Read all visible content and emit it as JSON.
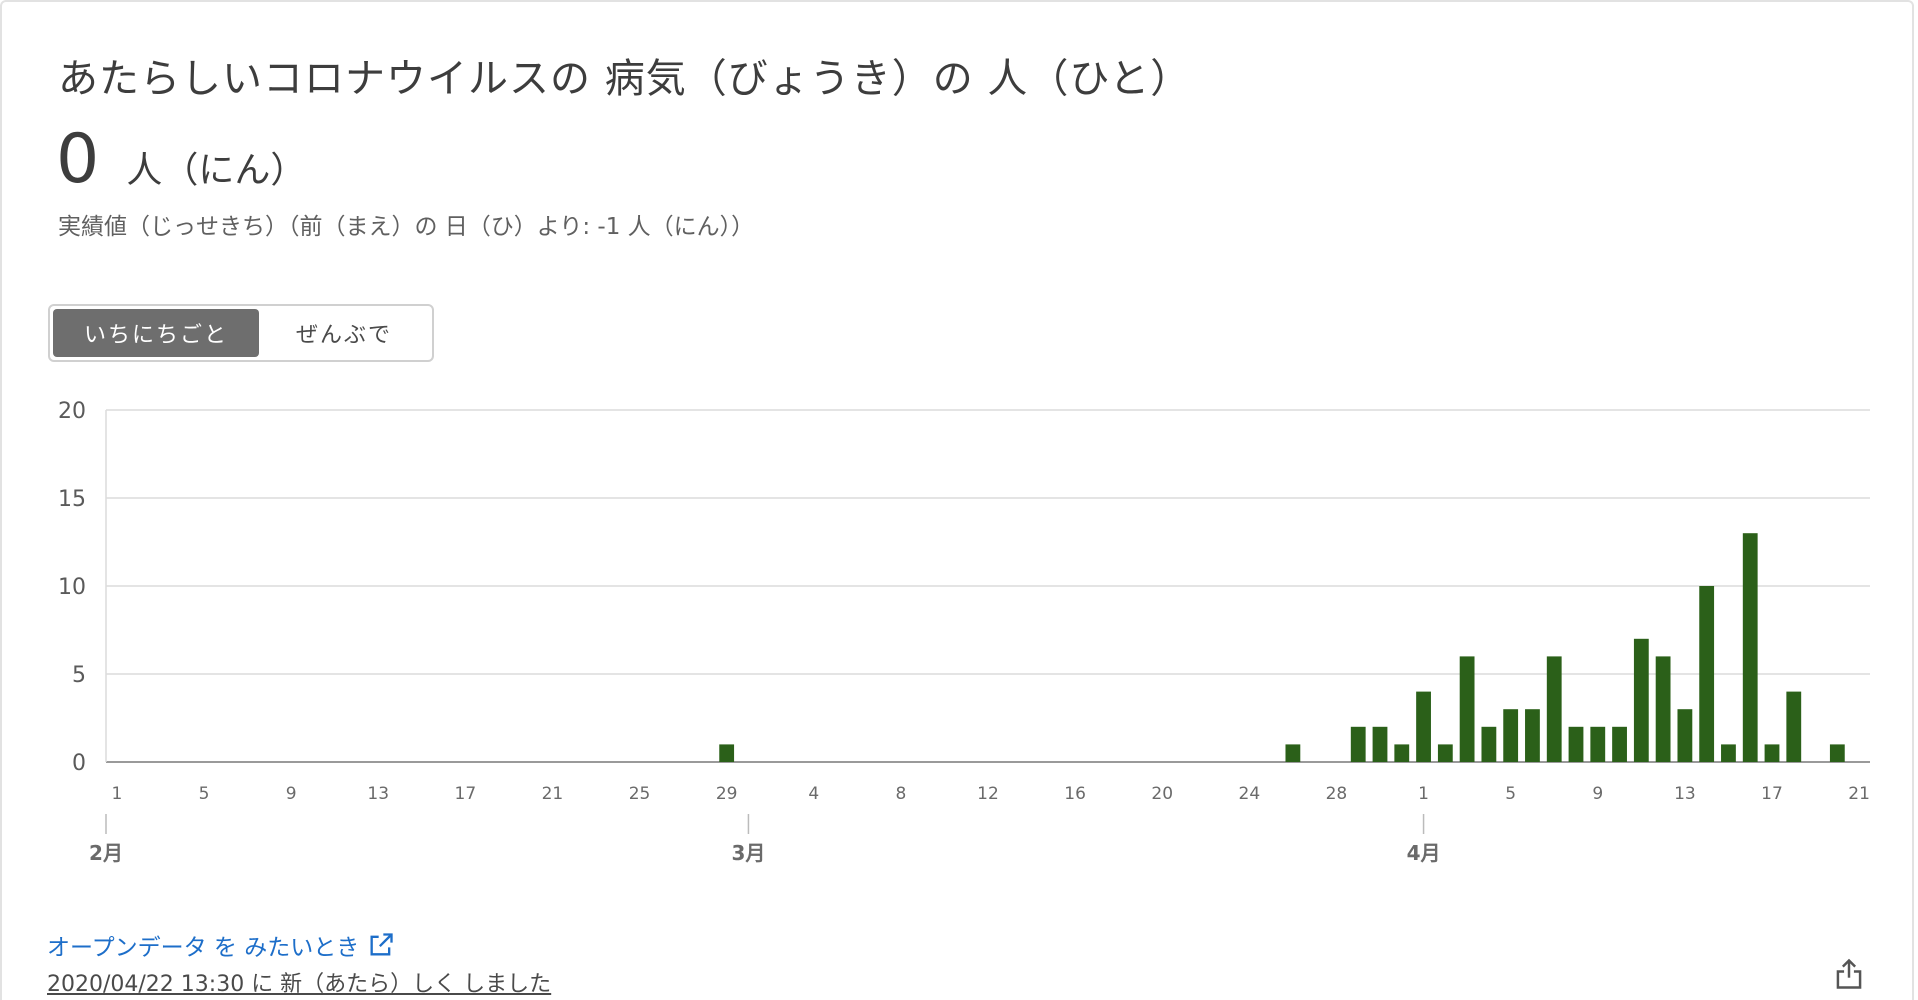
{
  "header": {
    "title": "あたらしいコロナウイルスの 病気（びょうき）の 人（ひと）",
    "value": "0",
    "unit": "人（にん）",
    "subtitle": "実績値（じっせきち）（前（まえ）の 日（ひ）より: -1 人（にん））"
  },
  "toggle": {
    "daily_label": "いちにちごと",
    "cumulative_label": "ぜんぶで",
    "selected": "daily"
  },
  "chart_data": {
    "type": "bar",
    "color": "#2b6019",
    "ylim": [
      0,
      20
    ],
    "yticks": [
      0,
      5,
      10,
      15,
      20
    ],
    "xticks": [
      {
        "label": "1",
        "index": 0
      },
      {
        "label": "5",
        "index": 4
      },
      {
        "label": "9",
        "index": 8
      },
      {
        "label": "13",
        "index": 12
      },
      {
        "label": "17",
        "index": 16
      },
      {
        "label": "21",
        "index": 20
      },
      {
        "label": "25",
        "index": 24
      },
      {
        "label": "29",
        "index": 28
      },
      {
        "label": "4",
        "index": 32
      },
      {
        "label": "8",
        "index": 36
      },
      {
        "label": "12",
        "index": 40
      },
      {
        "label": "16",
        "index": 44
      },
      {
        "label": "20",
        "index": 48
      },
      {
        "label": "24",
        "index": 52
      },
      {
        "label": "28",
        "index": 56
      },
      {
        "label": "1",
        "index": 60
      },
      {
        "label": "5",
        "index": 64
      },
      {
        "label": "9",
        "index": 68
      },
      {
        "label": "13",
        "index": 72
      },
      {
        "label": "17",
        "index": 76
      },
      {
        "label": "21",
        "index": 80
      }
    ],
    "months": [
      {
        "label": "2月",
        "index": 0
      },
      {
        "label": "3月",
        "index": 29
      },
      {
        "label": "4月",
        "index": 60
      }
    ],
    "values": [
      0,
      0,
      0,
      0,
      0,
      0,
      0,
      0,
      0,
      0,
      0,
      0,
      0,
      0,
      0,
      0,
      0,
      0,
      0,
      0,
      0,
      0,
      0,
      0,
      0,
      0,
      0,
      0,
      1,
      0,
      0,
      0,
      0,
      0,
      0,
      0,
      0,
      0,
      0,
      0,
      0,
      0,
      0,
      0,
      0,
      0,
      0,
      0,
      0,
      0,
      0,
      0,
      0,
      0,
      1,
      0,
      0,
      2,
      2,
      1,
      4,
      1,
      6,
      2,
      3,
      3,
      6,
      2,
      2,
      2,
      7,
      6,
      3,
      10,
      1,
      13,
      1,
      4,
      0,
      1,
      0
    ]
  },
  "footer": {
    "open_data_label": "オープンデータ を みたいとき",
    "updated_label": "2020/04/22 13:30 に 新（あたら）しく しました"
  }
}
